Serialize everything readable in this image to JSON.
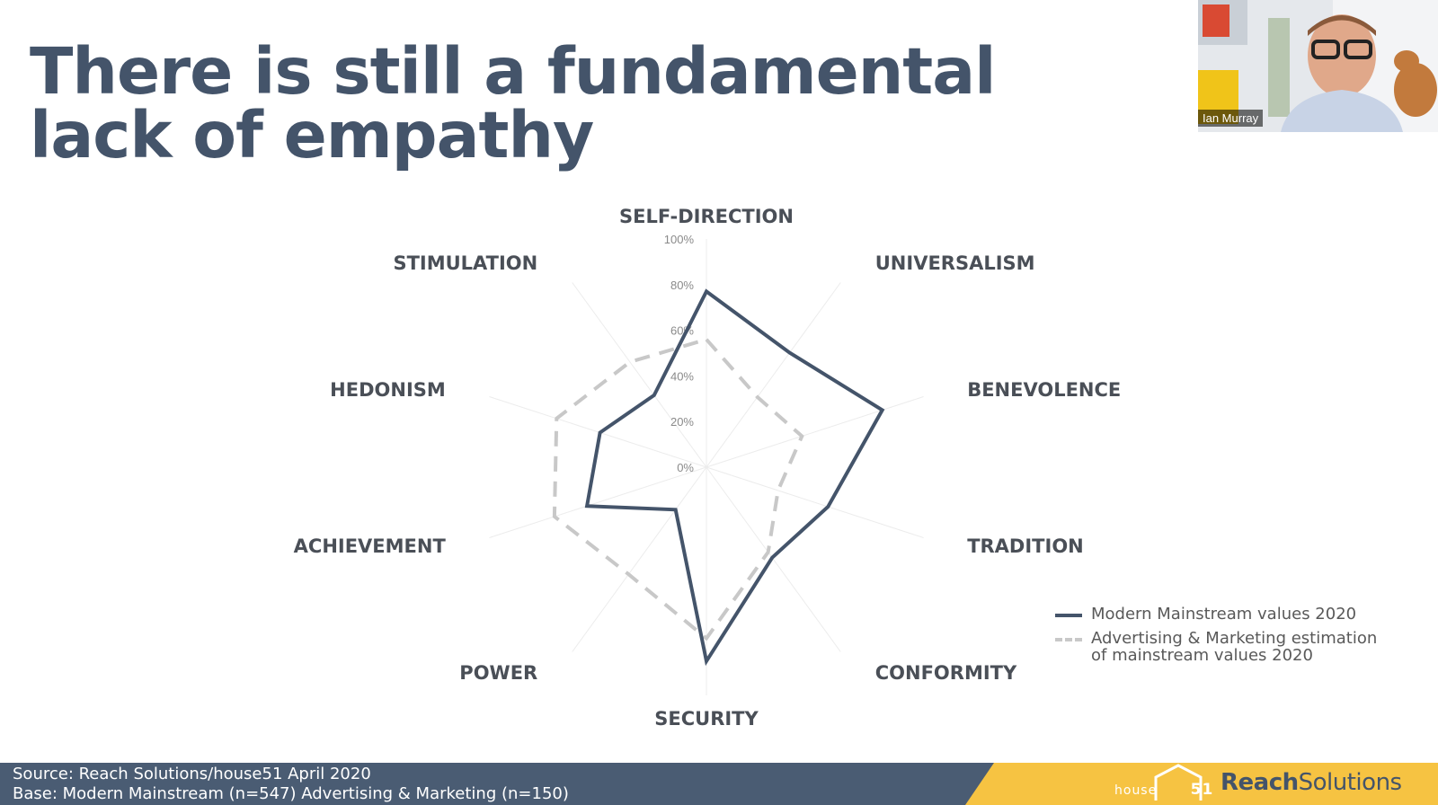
{
  "slide": {
    "title": "There is still a fundamental lack of empathy"
  },
  "webcam": {
    "participant_name": "Ian Murray"
  },
  "footer": {
    "source": "Source: Reach Solutions/house51 April 2020",
    "base": "Base: Modern Mainstream (n=547) Advertising & Marketing (n=150)",
    "brand_house": "house",
    "brand_house_number": "51",
    "brand_reach": "Reach",
    "brand_solutions": "Solutions",
    "colors": {
      "bar": "#44546a",
      "accent": "#f6c342"
    }
  },
  "chart_data": {
    "type": "radar",
    "categories": [
      "SELF-DIRECTION",
      "UNIVERSALISM",
      "BENEVOLENCE",
      "TRADITION",
      "CONFORMITY",
      "SECURITY",
      "POWER",
      "ACHIEVEMENT",
      "HEDONISM",
      "STIMULATION"
    ],
    "radial_ticks": [
      "0%",
      "20%",
      "40%",
      "60%",
      "80%",
      "100%"
    ],
    "rlim": [
      0,
      100
    ],
    "series": [
      {
        "name": "Modern Mainstream values 2020",
        "values": [
          77,
          62,
          81,
          56,
          49,
          85,
          23,
          55,
          49,
          39
        ],
        "color": "#44546a",
        "style": "solid"
      },
      {
        "name": "Advertising & Marketing estimation of mainstream values 2020",
        "values": [
          56,
          38,
          44,
          33,
          46,
          75,
          58,
          70,
          69,
          57
        ],
        "color": "#c8c8c8",
        "style": "dashed"
      }
    ],
    "legend_position": "bottom-right"
  }
}
